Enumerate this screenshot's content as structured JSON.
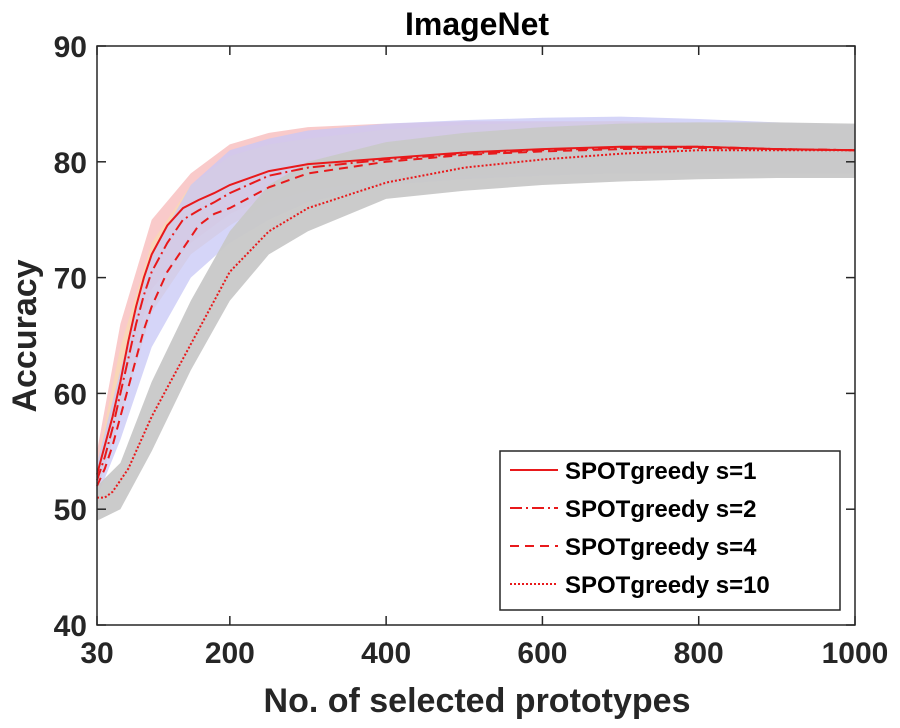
{
  "chart_data": {
    "type": "line",
    "title": "ImageNet",
    "xlabel": "No. of selected prototypes",
    "ylabel": "Accuracy",
    "xlim": [
      30,
      1000
    ],
    "ylim": [
      40,
      90
    ],
    "xticks": [
      30,
      200,
      400,
      600,
      800,
      1000
    ],
    "xtick_labels": [
      "30",
      "200",
      "400",
      "600",
      "800",
      "1000"
    ],
    "yticks": [
      40,
      50,
      60,
      70,
      80,
      90
    ],
    "ytick_labels": [
      "40",
      "50",
      "60",
      "70",
      "80",
      "90"
    ],
    "grid": false,
    "legend_position": "bottom-right",
    "bands": [
      {
        "name": "SPOTgreedy s=1 band",
        "color": "#f7b8b8",
        "x": [
          30,
          60,
          100,
          150,
          200,
          250,
          300,
          400,
          500,
          600,
          700,
          800,
          900,
          1000
        ],
        "lower": [
          52,
          60,
          69,
          73,
          75.5,
          77,
          78,
          78.8,
          79,
          79,
          79,
          79,
          79,
          79
        ],
        "upper": [
          55,
          66,
          75,
          79,
          81.5,
          82.5,
          83,
          83.3,
          83.5,
          83.5,
          83.5,
          83.3,
          83.2,
          83
        ]
      },
      {
        "name": "SPOTgreedy s=2 band",
        "color": "#f8d9b0",
        "x": [
          30,
          60,
          100,
          150,
          200,
          250,
          300,
          400,
          500,
          600,
          700,
          800,
          900,
          1000
        ],
        "lower": [
          51.5,
          58,
          67,
          72,
          74.5,
          76.5,
          77.5,
          78.5,
          78.8,
          79,
          79,
          79,
          79,
          79
        ],
        "upper": [
          54,
          64,
          73,
          78,
          80.5,
          81.5,
          82,
          82.8,
          83.2,
          83.4,
          83.5,
          83.4,
          83.2,
          83
        ]
      },
      {
        "name": "SPOTgreedy s=4 band",
        "color": "#c7c7f5",
        "x": [
          30,
          60,
          100,
          150,
          200,
          250,
          300,
          400,
          500,
          600,
          700,
          800,
          900,
          1000
        ],
        "lower": [
          51,
          56,
          64,
          70,
          73,
          75,
          76.5,
          78,
          78.5,
          78.8,
          79,
          79,
          79,
          79
        ],
        "upper": [
          54,
          62,
          72,
          78,
          81,
          82,
          82.7,
          83.3,
          83.6,
          83.8,
          83.9,
          83.7,
          83.4,
          83.2
        ]
      },
      {
        "name": "SPOTgreedy s=10 band",
        "color": "#c8c8c8",
        "x": [
          30,
          60,
          100,
          150,
          200,
          250,
          300,
          400,
          500,
          600,
          700,
          800,
          900,
          1000
        ],
        "lower": [
          49,
          50,
          55,
          62,
          68,
          72,
          74,
          76.8,
          77.5,
          78,
          78.3,
          78.5,
          78.6,
          78.6
        ],
        "upper": [
          52,
          54,
          61,
          68,
          74,
          78,
          80,
          81.7,
          82.5,
          83,
          83.3,
          83.4,
          83.4,
          83.3
        ]
      }
    ],
    "series": [
      {
        "name": "SPOTgreedy s=1",
        "color": "#e8191b",
        "dash": "",
        "x": [
          30,
          40,
          50,
          60,
          70,
          80,
          90,
          100,
          120,
          140,
          160,
          180,
          200,
          250,
          300,
          400,
          500,
          600,
          700,
          800,
          900,
          1000
        ],
        "y": [
          53,
          55.5,
          58,
          61,
          64.5,
          67.5,
          70,
          72,
          74.5,
          76,
          76.7,
          77.3,
          78,
          79.2,
          79.8,
          80.3,
          80.8,
          81.1,
          81.3,
          81.3,
          81.1,
          81
        ]
      },
      {
        "name": "SPOTgreedy s=2",
        "color": "#e8191b",
        "dash": "12,4,2,4",
        "x": [
          30,
          40,
          50,
          60,
          70,
          80,
          90,
          100,
          120,
          140,
          160,
          180,
          200,
          250,
          300,
          400,
          500,
          600,
          700,
          800,
          900,
          1000
        ],
        "y": [
          52.5,
          54.5,
          57,
          60,
          63,
          66,
          68.5,
          70.5,
          73,
          75,
          75.8,
          76.5,
          77.3,
          78.8,
          79.5,
          80.2,
          80.7,
          81,
          81.2,
          81.3,
          81.1,
          81
        ]
      },
      {
        "name": "SPOTgreedy s=4",
        "color": "#e8191b",
        "dash": "9,6",
        "x": [
          30,
          40,
          50,
          60,
          70,
          80,
          90,
          100,
          120,
          140,
          160,
          180,
          200,
          250,
          300,
          400,
          500,
          600,
          700,
          800,
          900,
          1000
        ],
        "y": [
          52,
          53.5,
          55.5,
          58,
          60.5,
          63,
          65.5,
          67.5,
          70.5,
          72.5,
          74.5,
          75.5,
          76,
          77.8,
          79,
          80,
          80.6,
          80.9,
          81.1,
          81.2,
          81.1,
          81
        ]
      },
      {
        "name": "SPOTgreedy s=10",
        "color": "#e8191b",
        "dash": "2,2",
        "x": [
          30,
          40,
          50,
          60,
          70,
          80,
          90,
          100,
          120,
          140,
          160,
          180,
          200,
          250,
          300,
          400,
          500,
          600,
          700,
          800,
          900,
          1000
        ],
        "y": [
          51,
          51,
          51.5,
          52.5,
          53.5,
          55,
          56.5,
          58,
          60.5,
          63,
          65.5,
          68,
          70.5,
          74,
          76,
          78.2,
          79.5,
          80.2,
          80.7,
          81,
          81,
          81
        ]
      }
    ]
  }
}
